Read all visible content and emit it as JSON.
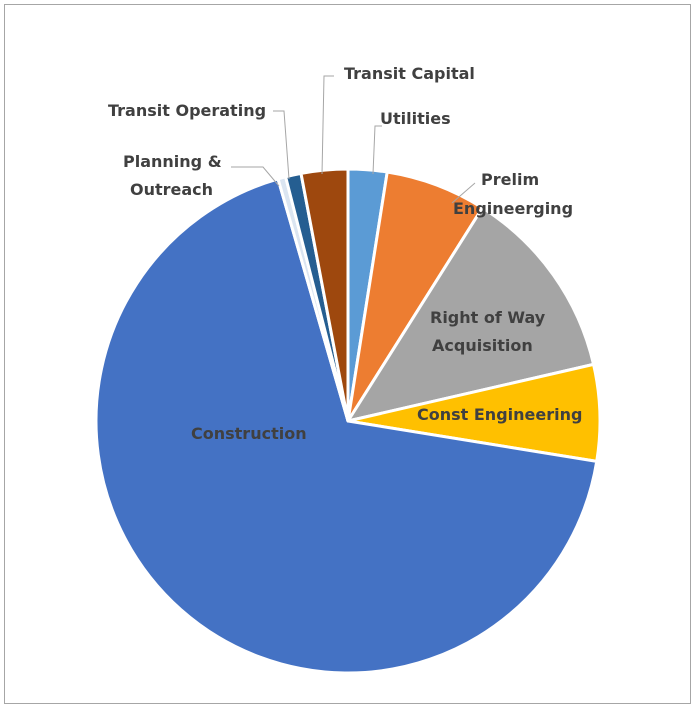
{
  "chart_data": {
    "type": "pie",
    "title": "",
    "slices": [
      {
        "label": "Utilities",
        "value": 2.5,
        "color": "#5b9bd5"
      },
      {
        "label": "Prelim Engineerging",
        "value": 6.5,
        "color": "#ed7d31"
      },
      {
        "label": "Right of Way Acquisition",
        "value": 12.5,
        "color": "#a5a5a5"
      },
      {
        "label": "Const Engineering",
        "value": 6.2,
        "color": "#ffc000"
      },
      {
        "label": "Construction",
        "value": 68.3,
        "color": "#4472c4"
      },
      {
        "label": "Planning & Outreach",
        "value": 0.5,
        "color": "#dbe5f1"
      },
      {
        "label": "Transit Operating",
        "value": 1.0,
        "color": "#255e91"
      },
      {
        "label": "Transit Capital",
        "value": 3.0,
        "color": "#9e480e"
      }
    ],
    "legend": "none",
    "data_labels": "category names"
  }
}
